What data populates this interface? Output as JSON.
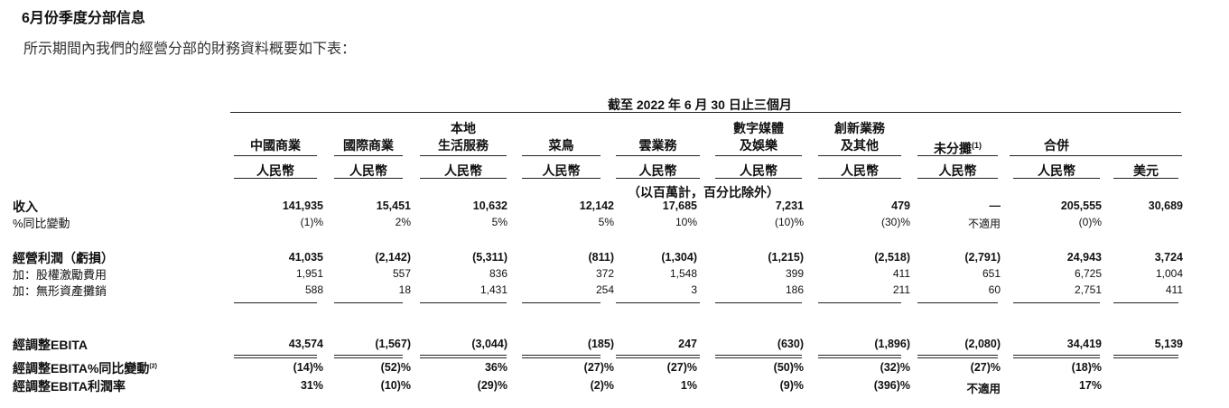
{
  "header": {
    "title": "6月份季度分部信息",
    "subtitle": "所示期間內我們的經營分部的財務資料概要如下表："
  },
  "table": {
    "period": "截至 2022 年 6 月 30 日止三個月",
    "units": "（以百萬計，百分比除外）",
    "columns": [
      {
        "line1": "",
        "line2": "中國商業",
        "currency": "人民幣"
      },
      {
        "line1": "",
        "line2": "國際商業",
        "currency": "人民幣"
      },
      {
        "line1": "本地",
        "line2": "生活服務",
        "currency": "人民幣"
      },
      {
        "line1": "",
        "line2": "菜鳥",
        "currency": "人民幣"
      },
      {
        "line1": "",
        "line2": "雲業務",
        "currency": "人民幣"
      },
      {
        "line1": "數字媒體",
        "line2": "及娛樂",
        "currency": "人民幣"
      },
      {
        "line1": "創新業務",
        "line2": "及其他",
        "currency": "人民幣"
      },
      {
        "line1": "",
        "line2": "未分攤",
        "note": "(1)",
        "currency": "人民幣"
      },
      {
        "line1": "",
        "line2": "合併",
        "currency": "人民幣"
      },
      {
        "line1": "",
        "line2": "",
        "currency": "美元"
      }
    ],
    "rows": [
      {
        "label": "收入",
        "bold": true,
        "values": [
          "141,935",
          "15,451",
          "10,632",
          "12,142",
          "17,685",
          "7,231",
          "479",
          "—",
          "205,555",
          "30,689"
        ]
      },
      {
        "label": "%同比變動",
        "bold": false,
        "values": [
          "(1)%",
          "2%",
          "5%",
          "5%",
          "10%",
          "(10)%",
          "(30)%",
          "不適用",
          "(0)%",
          ""
        ]
      },
      {
        "label": "經營利潤（虧損）",
        "bold": true,
        "values": [
          "41,035",
          "(2,142)",
          "(5,311)",
          "(811)",
          "(1,304)",
          "(1,215)",
          "(2,518)",
          "(2,791)",
          "24,943",
          "3,724"
        ]
      },
      {
        "label": "加：股權激勵費用",
        "bold": false,
        "values": [
          "1,951",
          "557",
          "836",
          "372",
          "1,548",
          "399",
          "411",
          "651",
          "6,725",
          "1,004"
        ]
      },
      {
        "label": "加：無形資產攤銷",
        "bold": false,
        "values": [
          "588",
          "18",
          "1,431",
          "254",
          "3",
          "186",
          "211",
          "60",
          "2,751",
          "411"
        ]
      },
      {
        "label": "經調整EBITA",
        "bold": true,
        "values": [
          "43,574",
          "(1,567)",
          "(3,044)",
          "(185)",
          "247",
          "(630)",
          "(1,896)",
          "(2,080)",
          "34,419",
          "5,139"
        ]
      },
      {
        "label": "經調整EBITA%同比變動",
        "note": "(2)",
        "bold": true,
        "values": [
          "(14)%",
          "(52)%",
          "36%",
          "(27)%",
          "(27)%",
          "(50)%",
          "(32)%",
          "(27)%",
          "(18)%",
          ""
        ]
      },
      {
        "label": "經調整EBITA利潤率",
        "bold": true,
        "values": [
          "31%",
          "(10)%",
          "(29)%",
          "(2)%",
          "1%",
          "(9)%",
          "(396)%",
          "不適用",
          "17%",
          ""
        ]
      }
    ]
  }
}
